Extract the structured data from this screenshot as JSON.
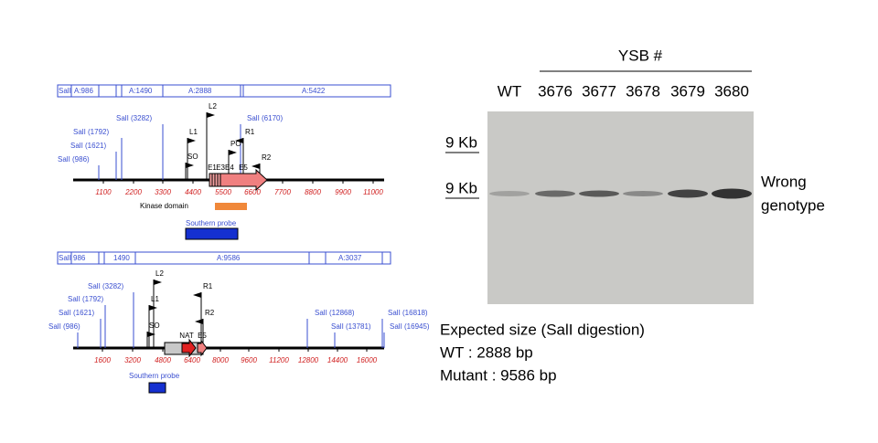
{
  "top_map": {
    "fragments": [
      "SalI",
      "A:986",
      "A:1490",
      "A:2888",
      "A:5422"
    ],
    "sali_sites": [
      "SalI (986)",
      "SalI (1621)",
      "SalI (1792)",
      "SalI (3282)",
      "SalI (6170)"
    ],
    "axis_ticks": [
      "1100",
      "2200",
      "3300",
      "4400",
      "5500",
      "6600",
      "7700",
      "8800",
      "9900",
      "11000"
    ],
    "primers": [
      "L2",
      "L1",
      "SO",
      "PO",
      "R1",
      "R2"
    ],
    "exons": [
      "E1",
      "E3E4",
      "E5"
    ],
    "kinase_domain": "Kinase domain",
    "probe": "Southern probe"
  },
  "bottom_map": {
    "fragments": [
      "SalI",
      "986",
      "1490",
      "A:9586",
      "A:3037"
    ],
    "sali_sites": [
      "SalI (986)",
      "SalI (1621)",
      "SalI (1792)",
      "SalI (3282)",
      "SalI (12868)",
      "SalI (13781)",
      "SalI (16818)",
      "SalI (16945)"
    ],
    "axis_ticks": [
      "1600",
      "3200",
      "4800",
      "6400",
      "8000",
      "9600",
      "11200",
      "12800",
      "14400",
      "16000"
    ],
    "primers": [
      "L2",
      "L1",
      "SO",
      "R1",
      "R2"
    ],
    "exons": [
      "NAT",
      "E5"
    ],
    "probe": "Southern probe"
  },
  "gel": {
    "group_label": "YSB #",
    "lanes": [
      "WT",
      "3676",
      "3677",
      "3678",
      "3679",
      "3680"
    ],
    "markers": [
      "9 Kb",
      "9 Kb"
    ],
    "annotation": [
      "Wrong",
      "genotype"
    ]
  },
  "caption": {
    "title": "Expected size (SalI digestion)",
    "lines": [
      "WT : 2888 bp",
      "Mutant : 9586 bp"
    ]
  }
}
